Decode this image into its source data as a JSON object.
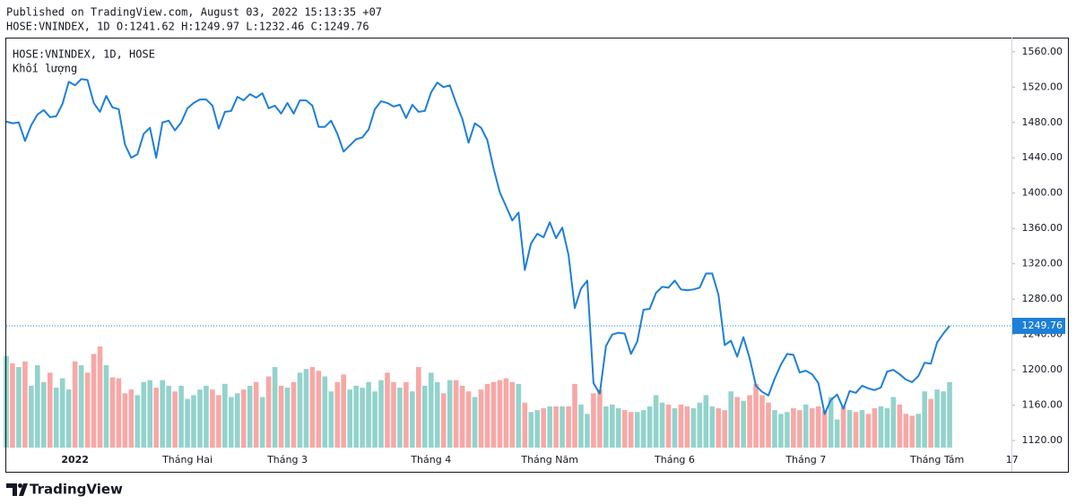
{
  "header": {
    "published": "Published on TradingView.com, August 03, 2022 15:13:35 +07",
    "ohlc": "HOSE:VNINDEX, 1D O:1241.62 H:1249.97 L:1232.46 C:1249.76"
  },
  "footer": {
    "brand": "TradingView"
  },
  "chart_data": {
    "type": "line",
    "grid": false,
    "categories": [
      null,
      null,
      null,
      null,
      null,
      null,
      null,
      null,
      null,
      null,
      null,
      "2022",
      null,
      null,
      null,
      null,
      null,
      null,
      null,
      null,
      null,
      null,
      null,
      null,
      null,
      null,
      null,
      null,
      null,
      "Tháng Hai",
      null,
      null,
      null,
      null,
      null,
      null,
      null,
      null,
      null,
      null,
      null,
      null,
      null,
      null,
      null,
      "Tháng 3",
      null,
      null,
      null,
      null,
      null,
      null,
      null,
      null,
      null,
      null,
      null,
      null,
      null,
      null,
      null,
      null,
      null,
      null,
      null,
      null,
      null,
      null,
      "Tháng 4",
      null,
      null,
      null,
      null,
      null,
      null,
      null,
      null,
      null,
      null,
      null,
      null,
      null,
      null,
      null,
      null,
      null,
      null,
      "Tháng Năm",
      null,
      null,
      null,
      null,
      null,
      null,
      null,
      null,
      null,
      null,
      null,
      null,
      null,
      null,
      null,
      null,
      null,
      null,
      null,
      "Tháng 6",
      null,
      null,
      null,
      null,
      null,
      null,
      null,
      null,
      null,
      null,
      null,
      null,
      null,
      null,
      null,
      null,
      null,
      null,
      null,
      null,
      "Tháng 7",
      null,
      null,
      null,
      null,
      null,
      null,
      null,
      null,
      null,
      null,
      null,
      null,
      null,
      null,
      null,
      null,
      null,
      null,
      null,
      null,
      "Tháng Tám",
      null,
      null,
      null,
      null,
      null,
      null,
      null,
      null,
      null,
      null,
      null,
      "17"
    ],
    "series": [
      {
        "name": "HOSE:VNINDEX, 1D, HOSE",
        "type": "line",
        "color": "#1e7fd8",
        "values": [
          1481,
          1479,
          1480,
          1459,
          1477,
          1489,
          1494,
          1486,
          1487,
          1501,
          1526,
          1522,
          1529,
          1528,
          1502,
          1492,
          1510,
          1497,
          1495,
          1455,
          1440,
          1444,
          1467,
          1474,
          1440,
          1480,
          1482,
          1471,
          1480,
          1496,
          1502,
          1506,
          1506,
          1499,
          1473,
          1492,
          1493,
          1509,
          1505,
          1512,
          1508,
          1513,
          1496,
          1499,
          1490,
          1502,
          1490,
          1505,
          1505,
          1499,
          1475,
          1475,
          1482,
          1467,
          1447,
          1454,
          1461,
          1463,
          1472,
          1495,
          1504,
          1502,
          1498,
          1500,
          1485,
          1500,
          1492,
          1493,
          1514,
          1525,
          1520,
          1522,
          1502,
          1484,
          1457,
          1479,
          1474,
          1460,
          1428,
          1401,
          1385,
          1369,
          1378,
          1313,
          1343,
          1354,
          1350,
          1367,
          1349,
          1361,
          1330,
          1270,
          1292,
          1301,
          1185,
          1173,
          1227,
          1240,
          1242,
          1241,
          1218,
          1232,
          1268,
          1269,
          1287,
          1294,
          1293,
          1301,
          1291,
          1290,
          1291,
          1293,
          1309,
          1309,
          1285,
          1228,
          1233,
          1215,
          1237,
          1213,
          1182,
          1175,
          1171,
          1190,
          1206,
          1218,
          1217,
          1197,
          1199,
          1195,
          1185,
          1150,
          1166,
          1172,
          1156,
          1176,
          1174,
          1182,
          1179,
          1177,
          1180,
          1198,
          1200,
          1195,
          1189,
          1186,
          1193,
          1208,
          1207,
          1231,
          1241,
          1249.76,
          null,
          null,
          null,
          null,
          null,
          null,
          null,
          null,
          null,
          null
        ]
      },
      {
        "name": "Khối lượng",
        "type": "volume",
        "up_color": "#92d3cc",
        "down_color": "#f7a8a6",
        "values": [
          98,
          90,
          86,
          92,
          66,
          88,
          70,
          80,
          64,
          74,
          62,
          92,
          88,
          80,
          100,
          108,
          88,
          75,
          74,
          58,
          62,
          56,
          70,
          72,
          64,
          72,
          66,
          60,
          66,
          52,
          56,
          62,
          66,
          62,
          56,
          68,
          54,
          58,
          62,
          66,
          70,
          54,
          76,
          86,
          66,
          64,
          70,
          80,
          84,
          86,
          82,
          76,
          60,
          70,
          78,
          62,
          66,
          64,
          70,
          60,
          72,
          80,
          70,
          64,
          70,
          60,
          86,
          66,
          80,
          70,
          58,
          72,
          72,
          66,
          60,
          54,
          62,
          68,
          70,
          72,
          74,
          70,
          68,
          48,
          38,
          40,
          42,
          44,
          44,
          44,
          44,
          68,
          46,
          36,
          58,
          62,
          44,
          46,
          42,
          40,
          38,
          38,
          40,
          44,
          56,
          48,
          46,
          42,
          46,
          44,
          42,
          48,
          56,
          44,
          42,
          40,
          60,
          54,
          50,
          56,
          68,
          56,
          48,
          40,
          36,
          38,
          42,
          40,
          46,
          42,
          44,
          40,
          54,
          30,
          44,
          40,
          38,
          40,
          36,
          42,
          44,
          42,
          54,
          46,
          36,
          34,
          36,
          60,
          52,
          62,
          60,
          70,
          null,
          null,
          null,
          null,
          null,
          null,
          null,
          null,
          null,
          null
        ]
      }
    ],
    "ylim": [
      1112,
      1576
    ],
    "yticks": [
      {
        "value": 1120,
        "label": "1120.00"
      },
      {
        "value": 1160,
        "label": "1160.00"
      },
      {
        "value": 1200,
        "label": "1200.00"
      },
      {
        "value": 1240,
        "label": "1240.00"
      },
      {
        "value": 1280,
        "label": "1280.00"
      },
      {
        "value": 1320,
        "label": "1320.00"
      },
      {
        "value": 1360,
        "label": "1360.00"
      },
      {
        "value": 1400,
        "label": "1400.00"
      },
      {
        "value": 1440,
        "label": "1440.00"
      },
      {
        "value": 1480,
        "label": "1480.00"
      },
      {
        "value": 1520,
        "label": "1520.00"
      },
      {
        "value": 1560,
        "label": "1560.00"
      }
    ]
  }
}
